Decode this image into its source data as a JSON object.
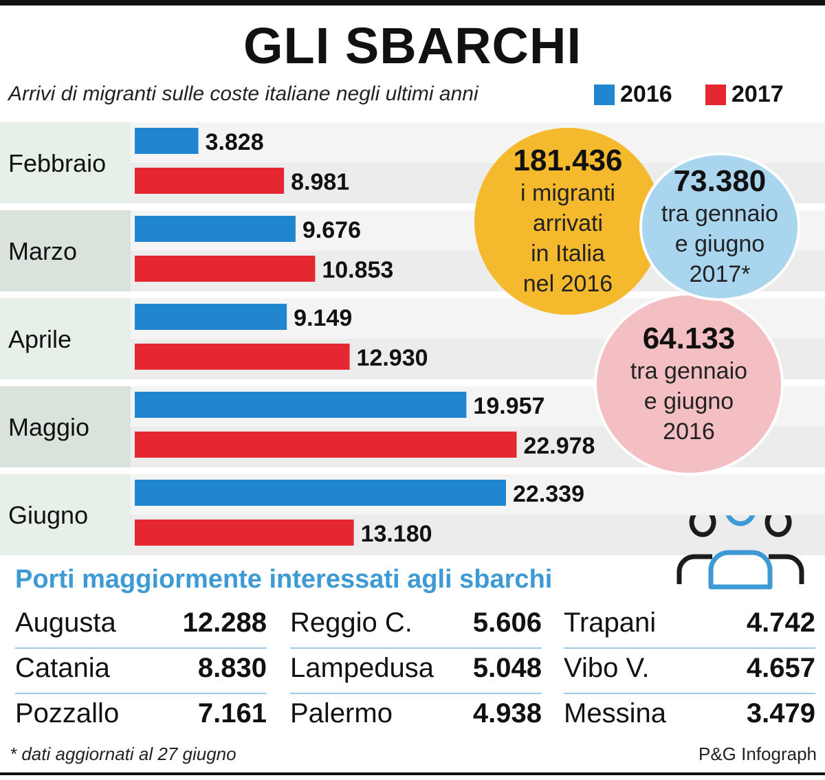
{
  "title": "GLI SBARCHI",
  "subtitle": "Arrivi di migranti sulle coste italiane negli ultimi anni",
  "legend": [
    {
      "label": "2016",
      "color": "#1f86cf"
    },
    {
      "label": "2017",
      "color": "#e42730"
    }
  ],
  "chart_data": {
    "type": "bar",
    "orientation": "horizontal",
    "categories": [
      "Febbraio",
      "Marzo",
      "Aprile",
      "Maggio",
      "Giugno"
    ],
    "series": [
      {
        "name": "2016",
        "color": "#1f86cf",
        "values": [
          3828,
          9676,
          9149,
          19957,
          22339
        ],
        "labels": [
          "3.828",
          "9.676",
          "9.149",
          "19.957",
          "22.339"
        ]
      },
      {
        "name": "2017",
        "color": "#e42730",
        "values": [
          8981,
          10853,
          12930,
          22978,
          13180
        ],
        "labels": [
          "8.981",
          "10.853",
          "12.930",
          "22.978",
          "13.180"
        ]
      }
    ],
    "grid": false,
    "legend_position": "top-right"
  },
  "bubbles": {
    "total_2016": {
      "value": "181.436",
      "text": [
        "i migranti",
        "arrivati",
        "in Italia",
        "nel 2016"
      ],
      "color": "#f5b92e"
    },
    "jan_jun_2017": {
      "value": "73.380",
      "text": [
        "tra gennaio",
        "e giugno",
        "2017*"
      ],
      "color": "#a9d5ef"
    },
    "jan_jun_2016": {
      "value": "64.133",
      "text": [
        "tra gennaio",
        "e giugno",
        "2016"
      ],
      "color": "#f3bfc2"
    }
  },
  "ports": {
    "title": "Porti maggiormente interessati agli sbarchi",
    "columns": [
      [
        {
          "name": "Augusta",
          "value": "12.288"
        },
        {
          "name": "Catania",
          "value": "8.830"
        },
        {
          "name": "Pozzallo",
          "value": "7.161"
        }
      ],
      [
        {
          "name": "Reggio C.",
          "value": "5.606"
        },
        {
          "name": "Lampedusa",
          "value": "5.048"
        },
        {
          "name": "Palermo",
          "value": "4.938"
        }
      ],
      [
        {
          "name": "Trapani",
          "value": "4.742"
        },
        {
          "name": "Vibo V.",
          "value": "4.657"
        },
        {
          "name": "Messina",
          "value": "3.479"
        }
      ]
    ]
  },
  "icons": {
    "people": "people-group-icon"
  },
  "footnote": "* dati aggiornati al 27 giugno",
  "credit": "P&G Infograph"
}
